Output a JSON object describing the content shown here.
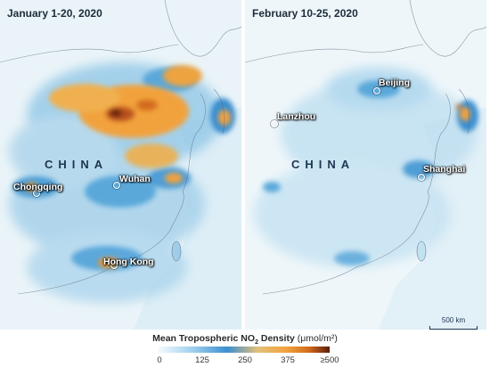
{
  "left_panel": {
    "title": "January 1-20, 2020",
    "country_label": "CHINA",
    "cities": [
      {
        "name": "Chongqing"
      },
      {
        "name": "Wuhan"
      },
      {
        "name": "Hong Kong"
      }
    ]
  },
  "right_panel": {
    "title": "February 10-25, 2020",
    "country_label": "CHINA",
    "cities": [
      {
        "name": "Beijing"
      },
      {
        "name": "Lanzhou"
      },
      {
        "name": "Shanghai"
      }
    ],
    "scale_label": "500 km"
  },
  "legend": {
    "title_main": "Mean Tropospheric NO",
    "title_sub": "2",
    "title_density": " Density ",
    "title_unit": "(μmol/m²)",
    "ticks": [
      "0",
      "125",
      "250",
      "375",
      "≥500"
    ],
    "colors": [
      "#f4fbfd",
      "#9fd0ec",
      "#3c8fd0",
      "#e3c07a",
      "#f2a23c",
      "#d26a1c",
      "#5a1e0c"
    ]
  }
}
